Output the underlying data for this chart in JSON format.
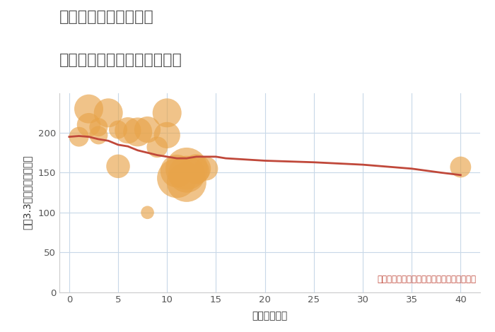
{
  "title_line1": "神奈川県鎌倉市坂ノ下",
  "title_line2": "築年数別中古マンション価格",
  "xlabel": "築年数（年）",
  "ylabel": "坪（3.3㎡）単価（万円）",
  "annotation": "円の大きさは、取引のあった物件面積を示す",
  "scatter_x": [
    1,
    2,
    2,
    3,
    3,
    4,
    5,
    5,
    6,
    7,
    8,
    8,
    9,
    10,
    10,
    11,
    11,
    12,
    12,
    12,
    13,
    13,
    14,
    40
  ],
  "scatter_y": [
    195,
    210,
    230,
    207,
    197,
    225,
    158,
    204,
    203,
    201,
    100,
    204,
    182,
    225,
    197,
    152,
    143,
    155,
    148,
    138,
    155,
    152,
    155,
    157
  ],
  "scatter_size": [
    15,
    18,
    22,
    14,
    14,
    22,
    18,
    14,
    20,
    22,
    10,
    20,
    16,
    22,
    20,
    25,
    30,
    32,
    28,
    30,
    22,
    20,
    18,
    16
  ],
  "scatter_color": "#e8a44a",
  "scatter_alpha": 0.65,
  "line_x": [
    0,
    1,
    2,
    3,
    4,
    5,
    6,
    7,
    8,
    9,
    10,
    11,
    12,
    13,
    14,
    15,
    16,
    20,
    25,
    30,
    35,
    38,
    40
  ],
  "line_y": [
    195,
    196,
    195,
    192,
    190,
    185,
    183,
    178,
    175,
    172,
    170,
    168,
    168,
    170,
    170,
    170,
    168,
    165,
    163,
    160,
    155,
    150,
    147
  ],
  "line_color": "#c0483a",
  "line_width": 2.0,
  "ylim": [
    0,
    250
  ],
  "xlim": [
    -1,
    42
  ],
  "yticks": [
    0,
    50,
    100,
    150,
    200
  ],
  "xticks": [
    0,
    5,
    10,
    15,
    20,
    25,
    30,
    35,
    40
  ],
  "grid_color": "#c8d8e8",
  "bg_color": "#ffffff",
  "title_color": "#555555",
  "title_fontsize": 16,
  "label_fontsize": 10,
  "annotation_fontsize": 8.5,
  "annotation_color": "#c0483a"
}
